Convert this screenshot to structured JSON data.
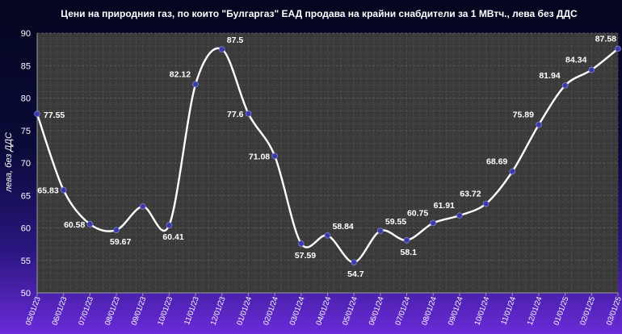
{
  "chart_data": {
    "type": "line",
    "title": "Цени на природния газ, по които \"Булгаргаз\" ЕАД продава на крайни снабдители за 1 МВтч., лева без  ДДС",
    "xlabel": "",
    "ylabel": "лева,  без ДДС",
    "ylim": [
      50,
      90
    ],
    "yticks": [
      50,
      55,
      60,
      65,
      70,
      75,
      80,
      85,
      90
    ],
    "grid": true,
    "categories": [
      "05/01/23",
      "06/01/23",
      "07/01/23",
      "08/01/23",
      "09/01/23",
      "10/01/23",
      "11/01/23",
      "12/01/23",
      "01/01/24",
      "02/01/24",
      "03/01/24",
      "04/01/24",
      "05/01/24",
      "06/01/24",
      "07/01/24",
      "08/01/24",
      "09/01/24",
      "10/01/24",
      "11/01/24",
      "12/01/24",
      "01/01/25",
      "02/01/25",
      "03/01/25"
    ],
    "series": [
      {
        "values": [
          77.55,
          65.83,
          60.58,
          59.67,
          63.3,
          60.41,
          82.12,
          87.5,
          77.6,
          71.08,
          57.59,
          58.84,
          54.7,
          59.55,
          58.1,
          60.75,
          61.91,
          63.72,
          68.69,
          75.89,
          81.94,
          84.34,
          87.58
        ],
        "labels": [
          "77.55",
          "65.83",
          "60.58",
          "59.67",
          "",
          "60.41",
          "82.12",
          "87.5",
          "77.6",
          "71.08",
          "57.59",
          "58.84",
          "54.7",
          "59.55",
          "58.1",
          "60.75",
          "61.91",
          "63.72",
          "68.69",
          "75.89",
          "81.94",
          "84.34",
          "87.58"
        ]
      }
    ],
    "colors": {
      "line": "#ffffff",
      "marker": "#3a3aa8",
      "plot_bg": "#3a3a3a",
      "grid": "#5a5a5a"
    }
  }
}
